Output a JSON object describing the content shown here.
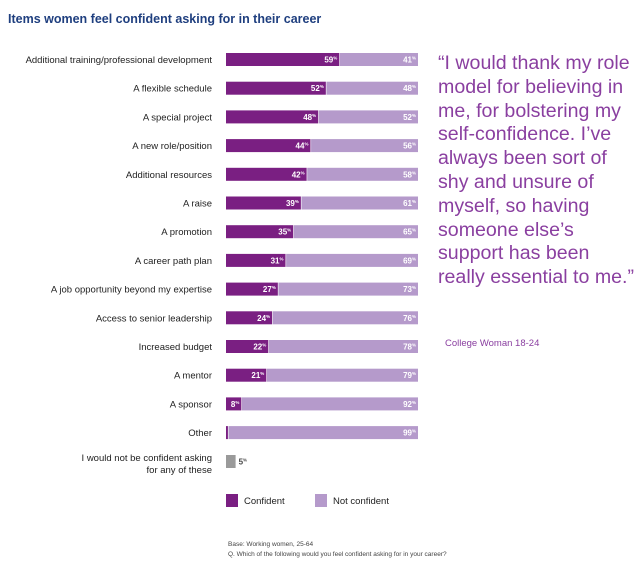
{
  "title": "Items women feel confident asking for in their career",
  "quote": {
    "text": "“I would thank my role model for believing in me, for bolstering my self-confidence. I’ve always been sort of shy and unsure of myself, so having someone else’s support has been really essential to me.”",
    "attribution": "College Woman 18-24"
  },
  "footnotes": {
    "base": "Base: Working women, 25-64",
    "question": "Q. Which of the following would you feel confident asking for in your career?"
  },
  "colors": {
    "confident": "#7a1f82",
    "not_confident": "#b59acb",
    "none": "#9a9a9a"
  },
  "chart_data": {
    "type": "bar",
    "orientation": "horizontal",
    "stacked": true,
    "unit": "%",
    "categories": [
      "Additional training/professional development",
      "A flexible schedule",
      "A special project",
      "A new role/position",
      "Additional resources",
      "A raise",
      "A promotion",
      "A career path plan",
      "A job opportunity beyond my expertise",
      "Access to senior leadership",
      "Increased budget",
      "A mentor",
      "A sponsor",
      "Other"
    ],
    "series": [
      {
        "name": "Confident",
        "values": [
          59,
          52,
          48,
          44,
          42,
          39,
          35,
          31,
          27,
          24,
          22,
          21,
          8,
          1
        ]
      },
      {
        "name": "Not confident",
        "values": [
          41,
          48,
          52,
          56,
          58,
          61,
          65,
          69,
          73,
          76,
          78,
          79,
          92,
          99
        ]
      }
    ],
    "extra": {
      "label_line1": "I would not be confident asking",
      "label_line2": "for any of these",
      "value": 5
    },
    "legend": {
      "position": "bottom",
      "items": [
        "Confident",
        "Not confident"
      ]
    },
    "grid": false
  }
}
